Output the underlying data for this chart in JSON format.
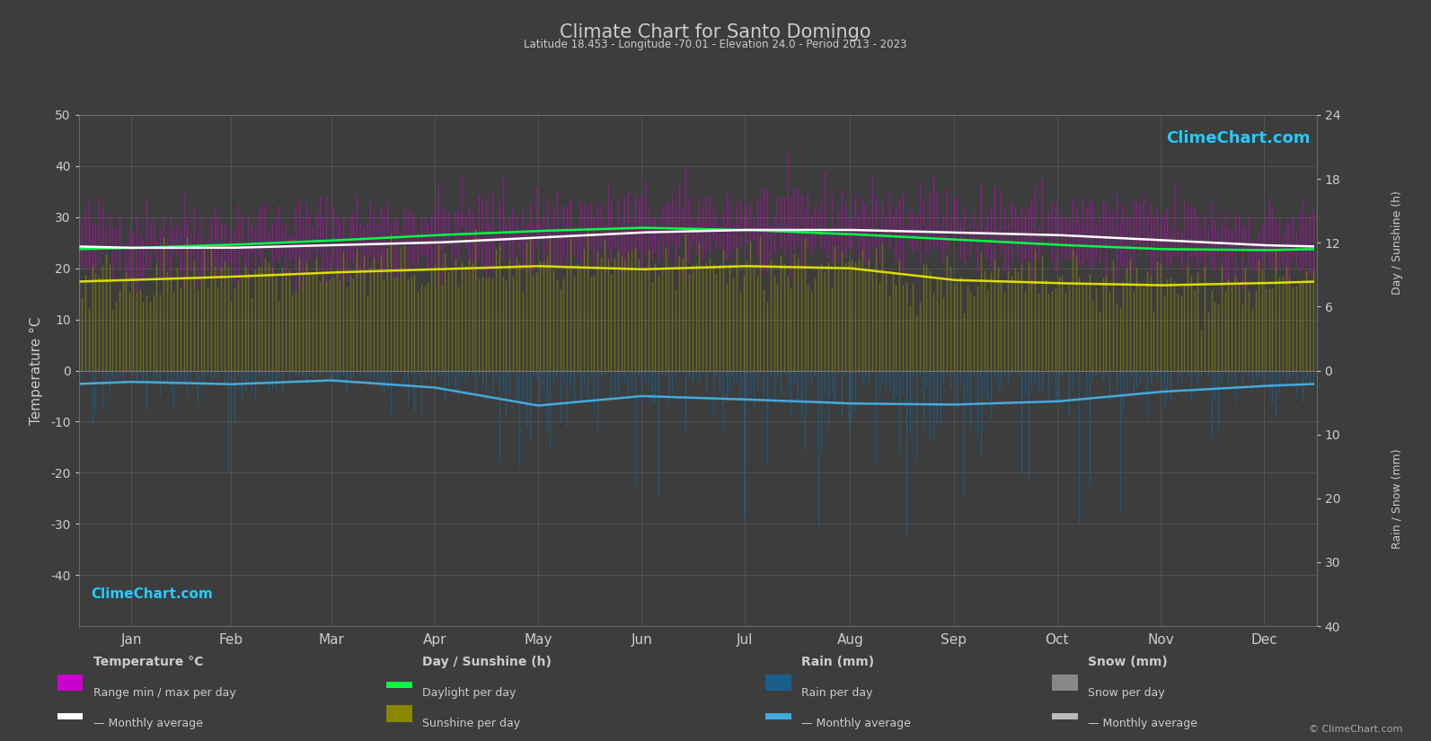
{
  "title": "Climate Chart for Santo Domingo",
  "subtitle": "Latitude 18.453 - Longitude -70.01 - Elevation 24.0 - Period 2013 - 2023",
  "background_color": "#3d3d3d",
  "plot_bg_color": "#3d3d3d",
  "text_color": "#cccccc",
  "grid_color": "#777777",
  "months": [
    "Jan",
    "Feb",
    "Mar",
    "Apr",
    "May",
    "Jun",
    "Jul",
    "Aug",
    "Sep",
    "Oct",
    "Nov",
    "Dec"
  ],
  "temp_ylim": [
    -50,
    50
  ],
  "temp_avg": [
    24.0,
    24.0,
    24.5,
    25.0,
    26.0,
    27.0,
    27.5,
    27.5,
    27.0,
    26.5,
    25.5,
    24.5
  ],
  "temp_max_avg": [
    29.5,
    29.5,
    30.0,
    31.0,
    31.5,
    32.0,
    32.5,
    32.5,
    32.0,
    31.5,
    30.5,
    29.5
  ],
  "temp_min_avg": [
    19.5,
    19.5,
    20.0,
    21.0,
    22.0,
    23.0,
    23.0,
    23.0,
    23.0,
    22.0,
    21.0,
    20.0
  ],
  "daylight_avg": [
    11.5,
    11.8,
    12.2,
    12.7,
    13.1,
    13.4,
    13.2,
    12.8,
    12.3,
    11.8,
    11.4,
    11.3
  ],
  "sunshine_avg": [
    8.5,
    8.8,
    9.2,
    9.5,
    9.8,
    9.5,
    9.8,
    9.6,
    8.5,
    8.2,
    8.0,
    8.2
  ],
  "rain_monthly_avg_mm": [
    55,
    60,
    48,
    80,
    170,
    120,
    140,
    160,
    160,
    150,
    100,
    75
  ],
  "days_in_month": [
    31,
    28,
    31,
    30,
    31,
    30,
    31,
    31,
    30,
    31,
    30,
    31
  ],
  "colors": {
    "temp_range_fill": "#cc00cc",
    "temp_avg_line": "#ffffff",
    "daylight_line": "#00ff44",
    "sunshine_fill": "#888800",
    "sunshine_line": "#dddd00",
    "rain_fill": "#1a5f8a",
    "rain_line": "#44aadd",
    "snow_fill": "#888888",
    "snow_line": "#bbbbbb"
  }
}
